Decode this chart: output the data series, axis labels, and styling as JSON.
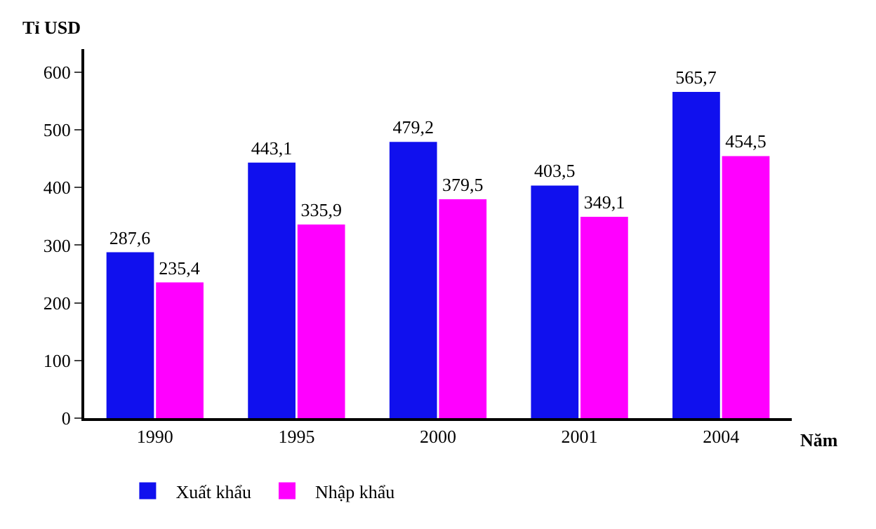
{
  "chart_data": {
    "type": "bar",
    "xlabel": "Năm",
    "ylabel": "Tỉ USD",
    "categories": [
      "1990",
      "1995",
      "2000",
      "2001",
      "2004"
    ],
    "series": [
      {
        "name": "Xuất khẩu",
        "color": "#1010ee",
        "values": [
          287.6,
          443.1,
          479.2,
          403.5,
          565.7
        ],
        "value_labels": [
          "287,6",
          "443,1",
          "479,2",
          "403,5",
          "565,7"
        ]
      },
      {
        "name": "Nhập khẩu",
        "color": "#ff00ff",
        "values": [
          235.4,
          335.9,
          379.5,
          349.1,
          454.5
        ],
        "value_labels": [
          "235,4",
          "335,9",
          "379,5",
          "349,1",
          "454,5"
        ]
      }
    ],
    "ylim": [
      0,
      640
    ],
    "yticks": [
      0,
      100,
      200,
      300,
      400,
      500,
      600
    ],
    "legend": "bottom"
  }
}
